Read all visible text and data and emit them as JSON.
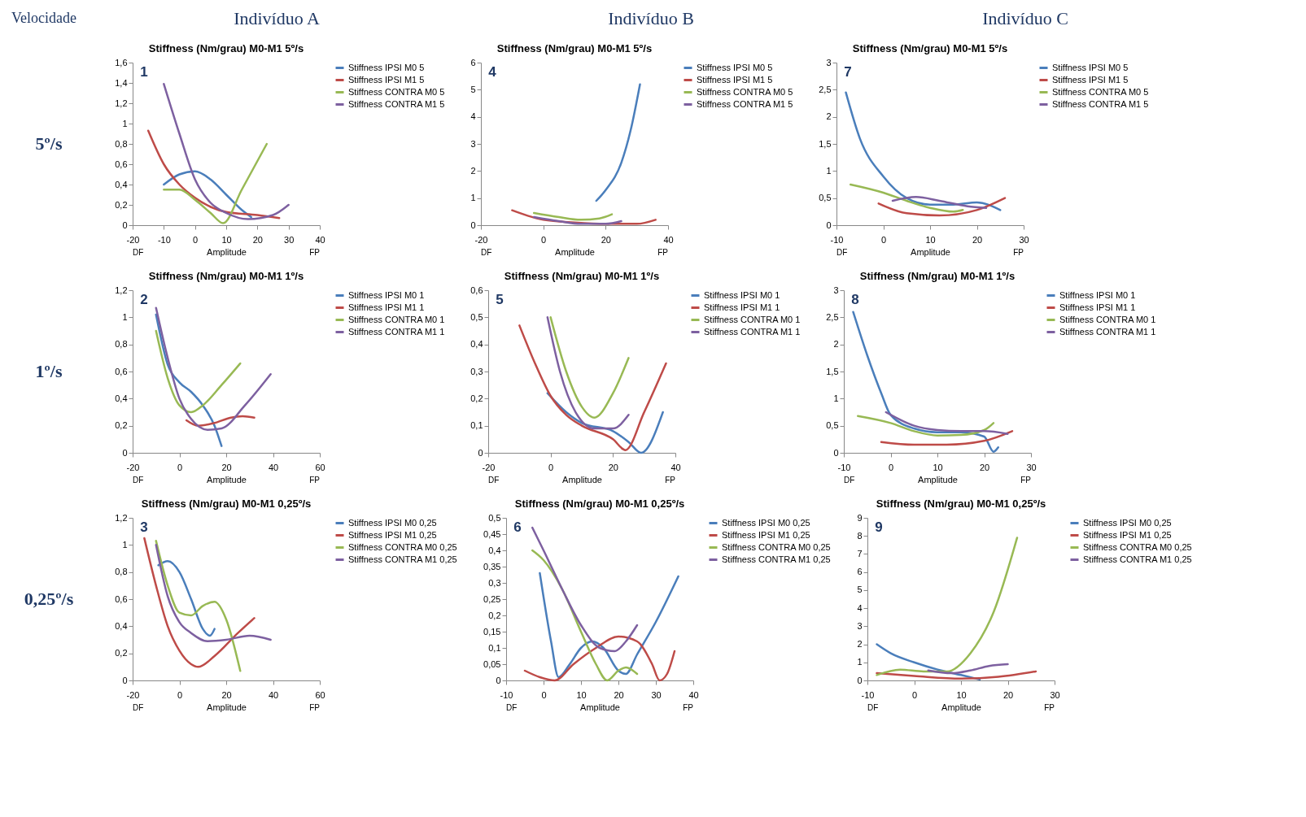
{
  "chart_data": [
    {
      "type": "line",
      "title": "Stiffness (Nm/grau) M0-M1 5º/s",
      "xlabel": "Amplitude",
      "legend": "right",
      "grid": false,
      "marker": "none",
      "line_style": "solid",
      "annotations": [
        "1",
        "DF",
        "FP",
        "Velocidade",
        "Indivíduo A",
        "5º/s"
      ],
      "xlim": [
        -20,
        40
      ],
      "xticks": [
        -20,
        -10,
        0,
        10,
        20,
        30,
        40
      ],
      "ylim": [
        0,
        1.6
      ],
      "yticks": [
        0,
        {
          "value": 0.2,
          "label": "0,2"
        },
        {
          "value": 0.4,
          "label": "0,4"
        },
        {
          "value": 0.6,
          "label": "0,6"
        },
        {
          "value": 0.8,
          "label": "0,8"
        },
        1,
        {
          "value": 1.2,
          "label": "1,2"
        },
        {
          "value": 1.4,
          "label": "1,4"
        },
        {
          "value": 1.6,
          "label": "1,6"
        }
      ],
      "series": [
        {
          "name": "Stiffness IPSI M0 5",
          "color": "#4a7ebb",
          "x": [
            -10,
            -5,
            0,
            5,
            10,
            15,
            18
          ],
          "values": [
            0.4,
            0.5,
            0.53,
            0.45,
            0.3,
            0.15,
            0.08
          ]
        },
        {
          "name": "Stiffness IPSI M1 5",
          "color": "#be4b48",
          "x": [
            -15,
            -10,
            -5,
            0,
            5,
            10,
            20,
            27
          ],
          "values": [
            0.93,
            0.6,
            0.4,
            0.27,
            0.18,
            0.13,
            0.1,
            0.07
          ]
        },
        {
          "name": "Stiffness CONTRA M0 5",
          "color": "#98b954",
          "x": [
            -10,
            -5,
            0,
            5,
            9,
            15,
            23
          ],
          "values": [
            0.35,
            0.35,
            0.25,
            0.12,
            0.02,
            0.35,
            0.8
          ]
        },
        {
          "name": "Stiffness CONTRA M1 5",
          "color": "#7d60a0",
          "x": [
            -10,
            -5,
            0,
            5,
            10,
            17,
            25,
            30
          ],
          "values": [
            1.39,
            0.9,
            0.45,
            0.22,
            0.12,
            0.06,
            0.1,
            0.2
          ]
        }
      ]
    },
    {
      "type": "line",
      "title": "Stiffness (Nm/grau) M0-M1 5º/s",
      "xlabel": "Amplitude",
      "legend": "right",
      "grid": false,
      "marker": "none",
      "line_style": "solid",
      "annotations": [
        "4",
        "DF",
        "FP",
        "Indivíduo B"
      ],
      "xlim": [
        -20,
        40
      ],
      "xticks": [
        -20,
        0,
        20,
        40
      ],
      "ylim": [
        0,
        6
      ],
      "yticks": [
        0,
        1,
        2,
        3,
        4,
        5,
        6
      ],
      "series": [
        {
          "name": "Stiffness IPSI M0 5",
          "color": "#4a7ebb",
          "x": [
            17,
            20,
            25,
            28,
            31
          ],
          "values": [
            0.9,
            1.3,
            2.3,
            3.5,
            5.2
          ]
        },
        {
          "name": "Stiffness IPSI M1 5",
          "color": "#be4b48",
          "x": [
            -10,
            -5,
            0,
            10,
            20,
            30,
            36
          ],
          "values": [
            0.55,
            0.35,
            0.2,
            0.1,
            0.05,
            0.05,
            0.2
          ]
        },
        {
          "name": "Stiffness CONTRA M0 5",
          "color": "#98b954",
          "x": [
            -3,
            5,
            12,
            18,
            22
          ],
          "values": [
            0.45,
            0.3,
            0.2,
            0.25,
            0.4
          ]
        },
        {
          "name": "Stiffness CONTRA M1 5",
          "color": "#7d60a0",
          "x": [
            -3,
            5,
            12,
            20,
            25
          ],
          "values": [
            0.3,
            0.15,
            0.05,
            0.05,
            0.15
          ]
        }
      ]
    },
    {
      "type": "line",
      "title": "Stiffness (Nm/grau) M0-M1 5º/s",
      "xlabel": "Amplitude",
      "legend": "right",
      "grid": false,
      "marker": "none",
      "line_style": "solid",
      "annotations": [
        "7",
        "DF",
        "FP",
        "Indivíduo C"
      ],
      "xlim": [
        -10,
        30
      ],
      "xticks": [
        -10,
        0,
        10,
        20,
        30
      ],
      "ylim": [
        0,
        3
      ],
      "yticks": [
        0,
        {
          "value": 0.5,
          "label": "0,5"
        },
        1,
        {
          "value": 1.5,
          "label": "1,5"
        },
        2,
        {
          "value": 2.5,
          "label": "2,5"
        },
        3
      ],
      "series": [
        {
          "name": "Stiffness IPSI M0 5",
          "color": "#4a7ebb",
          "x": [
            -8,
            -5,
            0,
            5,
            10,
            15,
            20,
            25
          ],
          "values": [
            2.45,
            1.6,
            0.9,
            0.5,
            0.38,
            0.38,
            0.42,
            0.28
          ]
        },
        {
          "name": "Stiffness IPSI M1 5",
          "color": "#be4b48",
          "x": [
            -1,
            5,
            12,
            20,
            26
          ],
          "values": [
            0.4,
            0.22,
            0.18,
            0.28,
            0.5
          ]
        },
        {
          "name": "Stiffness CONTRA M0 5",
          "color": "#98b954",
          "x": [
            -7,
            0,
            5,
            10,
            15,
            17
          ],
          "values": [
            0.75,
            0.6,
            0.45,
            0.32,
            0.25,
            0.28
          ]
        },
        {
          "name": "Stiffness CONTRA M1 5",
          "color": "#7d60a0",
          "x": [
            2,
            7,
            12,
            18,
            22
          ],
          "values": [
            0.45,
            0.52,
            0.45,
            0.35,
            0.32
          ]
        }
      ]
    },
    {
      "type": "line",
      "title": "Stiffness (Nm/grau) M0-M1 1º/s",
      "xlabel": "Amplitude",
      "legend": "right",
      "grid": false,
      "marker": "none",
      "line_style": "solid",
      "annotations": [
        "2",
        "DF",
        "FP",
        "1º/s"
      ],
      "xlim": [
        -20,
        60
      ],
      "xticks": [
        -20,
        0,
        20,
        40,
        60
      ],
      "ylim": [
        0,
        1.2
      ],
      "yticks": [
        0,
        {
          "value": 0.2,
          "label": "0,2"
        },
        {
          "value": 0.4,
          "label": "0,4"
        },
        {
          "value": 0.6,
          "label": "0,6"
        },
        {
          "value": 0.8,
          "label": "0,8"
        },
        1,
        {
          "value": 1.2,
          "label": "1,2"
        }
      ],
      "series": [
        {
          "name": "Stiffness IPSI M0 1",
          "color": "#4a7ebb",
          "x": [
            -10,
            -5,
            0,
            5,
            10,
            15,
            18
          ],
          "values": [
            1.02,
            0.65,
            0.52,
            0.45,
            0.35,
            0.2,
            0.05
          ]
        },
        {
          "name": "Stiffness IPSI M1 1",
          "color": "#be4b48",
          "x": [
            3,
            8,
            15,
            22,
            27,
            32
          ],
          "values": [
            0.24,
            0.2,
            0.22,
            0.26,
            0.27,
            0.26
          ]
        },
        {
          "name": "Stiffness CONTRA M0 1",
          "color": "#98b954",
          "x": [
            -10,
            -5,
            0,
            5,
            10,
            18,
            26
          ],
          "values": [
            0.9,
            0.55,
            0.35,
            0.3,
            0.35,
            0.5,
            0.66
          ]
        },
        {
          "name": "Stiffness CONTRA M1 1",
          "color": "#7d60a0",
          "x": [
            -10,
            -5,
            0,
            5,
            12,
            18,
            28,
            39
          ],
          "values": [
            1.07,
            0.7,
            0.4,
            0.25,
            0.17,
            0.18,
            0.35,
            0.58
          ]
        }
      ]
    },
    {
      "type": "line",
      "title": "Stiffness (Nm/grau) M0-M1 1º/s",
      "xlabel": "Amplitude",
      "legend": "right",
      "grid": false,
      "marker": "none",
      "line_style": "solid",
      "annotations": [
        "5",
        "DF",
        "FP"
      ],
      "xlim": [
        -20,
        40
      ],
      "xticks": [
        -20,
        0,
        20,
        40
      ],
      "ylim": [
        0,
        0.6
      ],
      "yticks": [
        0,
        {
          "value": 0.1,
          "label": "0,1"
        },
        {
          "value": 0.2,
          "label": "0,2"
        },
        {
          "value": 0.3,
          "label": "0,3"
        },
        {
          "value": 0.4,
          "label": "0,4"
        },
        {
          "value": 0.5,
          "label": "0,5"
        },
        {
          "value": 0.6,
          "label": "0,6"
        }
      ],
      "series": [
        {
          "name": "Stiffness IPSI M0 1",
          "color": "#4a7ebb",
          "x": [
            -1,
            5,
            10,
            20,
            25,
            29,
            36
          ],
          "values": [
            0.22,
            0.15,
            0.11,
            0.08,
            0.04,
            0.0,
            0.15
          ]
        },
        {
          "name": "Stiffness IPSI M1 1",
          "color": "#be4b48",
          "x": [
            -10,
            -5,
            0,
            5,
            10,
            20,
            24,
            30,
            37
          ],
          "values": [
            0.47,
            0.33,
            0.21,
            0.14,
            0.1,
            0.05,
            0.01,
            0.15,
            0.33
          ]
        },
        {
          "name": "Stiffness CONTRA M0 1",
          "color": "#98b954",
          "x": [
            0,
            5,
            10,
            14,
            20,
            25
          ],
          "values": [
            0.5,
            0.3,
            0.17,
            0.13,
            0.22,
            0.35
          ]
        },
        {
          "name": "Stiffness CONTRA M1 1",
          "color": "#7d60a0",
          "x": [
            -1,
            3,
            8,
            14,
            20,
            25
          ],
          "values": [
            0.5,
            0.3,
            0.15,
            0.09,
            0.09,
            0.14
          ]
        }
      ]
    },
    {
      "type": "line",
      "title": "Stiffness (Nm/grau) M0-M1 1º/s",
      "xlabel": "Amplitude",
      "legend": "right",
      "grid": false,
      "marker": "none",
      "line_style": "solid",
      "annotations": [
        "8",
        "DF",
        "FP"
      ],
      "xlim": [
        -10,
        30
      ],
      "xticks": [
        -10,
        0,
        10,
        20,
        30
      ],
      "ylim": [
        0,
        3
      ],
      "yticks": [
        0,
        {
          "value": 0.5,
          "label": "0,5"
        },
        1,
        {
          "value": 1.5,
          "label": "1,5"
        },
        2,
        {
          "value": 2.5,
          "label": "2,5"
        },
        3
      ],
      "series": [
        {
          "name": "Stiffness IPSI M0 1",
          "color": "#4a7ebb",
          "x": [
            -8,
            -5,
            -2,
            0,
            5,
            10,
            15,
            20,
            22,
            23
          ],
          "values": [
            2.6,
            1.8,
            1.1,
            0.7,
            0.45,
            0.38,
            0.38,
            0.3,
            0.02,
            0.1
          ]
        },
        {
          "name": "Stiffness IPSI M1 1",
          "color": "#be4b48",
          "x": [
            -2,
            5,
            12,
            20,
            26
          ],
          "values": [
            0.2,
            0.15,
            0.15,
            0.22,
            0.4
          ]
        },
        {
          "name": "Stiffness CONTRA M0 1",
          "color": "#98b954",
          "x": [
            -7,
            0,
            5,
            10,
            15,
            20,
            22
          ],
          "values": [
            0.68,
            0.55,
            0.4,
            0.32,
            0.33,
            0.42,
            0.55
          ]
        },
        {
          "name": "Stiffness CONTRA M1 1",
          "color": "#7d60a0",
          "x": [
            -1,
            5,
            10,
            15,
            20,
            25
          ],
          "values": [
            0.75,
            0.5,
            0.42,
            0.4,
            0.4,
            0.35
          ]
        }
      ]
    },
    {
      "type": "line",
      "title": "Stiffness (Nm/grau) M0-M1 0,25º/s",
      "xlabel": "Amplitude",
      "legend": "right",
      "grid": false,
      "marker": "none",
      "line_style": "solid",
      "annotations": [
        "3",
        "DF",
        "FP",
        "0,25º/s"
      ],
      "xlim": [
        -20,
        60
      ],
      "xticks": [
        -20,
        0,
        20,
        40,
        60
      ],
      "ylim": [
        0,
        1.2
      ],
      "yticks": [
        0,
        {
          "value": 0.2,
          "label": "0,2"
        },
        {
          "value": 0.4,
          "label": "0,4"
        },
        {
          "value": 0.6,
          "label": "0,6"
        },
        {
          "value": 0.8,
          "label": "0,8"
        },
        1,
        {
          "value": 1.2,
          "label": "1,2"
        }
      ],
      "series": [
        {
          "name": "Stiffness IPSI M0 0,25",
          "color": "#4a7ebb",
          "x": [
            -9,
            -5,
            0,
            5,
            10,
            13,
            15
          ],
          "values": [
            0.85,
            0.88,
            0.8,
            0.6,
            0.38,
            0.33,
            0.38
          ]
        },
        {
          "name": "Stiffness IPSI M1 0,25",
          "color": "#be4b48",
          "x": [
            -15,
            -10,
            -5,
            0,
            5,
            8,
            15,
            25,
            32
          ],
          "values": [
            1.05,
            0.7,
            0.4,
            0.22,
            0.12,
            0.1,
            0.18,
            0.35,
            0.46
          ]
        },
        {
          "name": "Stiffness CONTRA M0 0,25",
          "color": "#98b954",
          "x": [
            -10,
            -5,
            0,
            5,
            10,
            15,
            20,
            26
          ],
          "values": [
            1.03,
            0.7,
            0.5,
            0.48,
            0.55,
            0.58,
            0.45,
            0.07
          ]
        },
        {
          "name": "Stiffness CONTRA M1 0,25",
          "color": "#7d60a0",
          "x": [
            -10,
            -5,
            0,
            5,
            12,
            20,
            30,
            39
          ],
          "values": [
            1.0,
            0.62,
            0.43,
            0.35,
            0.29,
            0.3,
            0.33,
            0.3
          ]
        }
      ]
    },
    {
      "type": "line",
      "title": "Stiffness (Nm/grau) M0-M1 0,25º/s",
      "xlabel": "Amplitude",
      "legend": "right",
      "grid": false,
      "marker": "none",
      "line_style": "solid",
      "annotations": [
        "6",
        "DF",
        "FP"
      ],
      "xlim": [
        -10,
        40
      ],
      "xticks": [
        -10,
        0,
        10,
        20,
        30,
        40
      ],
      "ylim": [
        0,
        0.5
      ],
      "yticks": [
        0,
        {
          "value": 0.05,
          "label": "0,05"
        },
        {
          "value": 0.1,
          "label": "0,1"
        },
        {
          "value": 0.15,
          "label": "0,15"
        },
        {
          "value": 0.2,
          "label": "0,2"
        },
        {
          "value": 0.25,
          "label": "0,25"
        },
        {
          "value": 0.3,
          "label": "0,3"
        },
        {
          "value": 0.35,
          "label": "0,35"
        },
        {
          "value": 0.4,
          "label": "0,4"
        },
        {
          "value": 0.45,
          "label": "0,45"
        },
        {
          "value": 0.5,
          "label": "0,5"
        }
      ],
      "series": [
        {
          "name": "Stiffness IPSI M0 0,25",
          "color": "#4a7ebb",
          "x": [
            -1,
            2,
            4,
            7,
            10,
            13,
            16,
            20,
            22,
            25,
            30,
            36
          ],
          "values": [
            0.33,
            0.12,
            0.01,
            0.05,
            0.1,
            0.12,
            0.1,
            0.03,
            0.02,
            0.08,
            0.18,
            0.32
          ]
        },
        {
          "name": "Stiffness IPSI M1 0,25",
          "color": "#be4b48",
          "x": [
            -5,
            -1,
            3,
            8,
            14,
            20,
            25,
            29,
            31,
            33,
            35
          ],
          "values": [
            0.03,
            0.01,
            0.0,
            0.05,
            0.1,
            0.135,
            0.12,
            0.05,
            0.0,
            0.02,
            0.09
          ]
        },
        {
          "name": "Stiffness CONTRA M0 0,25",
          "color": "#98b954",
          "x": [
            -3,
            0,
            5,
            10,
            14,
            17,
            20,
            22,
            25
          ],
          "values": [
            0.4,
            0.37,
            0.28,
            0.15,
            0.05,
            0.0,
            0.03,
            0.04,
            0.02
          ]
        },
        {
          "name": "Stiffness CONTRA M1 0,25",
          "color": "#7d60a0",
          "x": [
            -3,
            0,
            5,
            10,
            15,
            19,
            22,
            25
          ],
          "values": [
            0.47,
            0.4,
            0.28,
            0.17,
            0.1,
            0.09,
            0.12,
            0.17
          ]
        }
      ]
    },
    {
      "type": "line",
      "title": "Stiffness (Nm/grau) M0-M1 0,25º/s",
      "xlabel": "Amplitude",
      "legend": "right",
      "grid": false,
      "marker": "none",
      "line_style": "solid",
      "annotations": [
        "9",
        "DF",
        "FP"
      ],
      "xlim": [
        -10,
        30
      ],
      "xticks": [
        -10,
        0,
        10,
        20,
        30
      ],
      "ylim": [
        0,
        9
      ],
      "yticks": [
        0,
        1,
        2,
        3,
        4,
        5,
        6,
        7,
        8,
        9
      ],
      "series": [
        {
          "name": "Stiffness IPSI M0 0,25",
          "color": "#4a7ebb",
          "x": [
            -8,
            -5,
            0,
            5,
            10,
            14
          ],
          "values": [
            2.0,
            1.5,
            1.0,
            0.6,
            0.3,
            0.05
          ]
        },
        {
          "name": "Stiffness IPSI M1 0,25",
          "color": "#be4b48",
          "x": [
            -8,
            0,
            10,
            18,
            26
          ],
          "values": [
            0.4,
            0.25,
            0.1,
            0.2,
            0.5
          ]
        },
        {
          "name": "Stiffness CONTRA M0 0,25",
          "color": "#98b954",
          "x": [
            -8,
            -3,
            2,
            7,
            12,
            17,
            22
          ],
          "values": [
            0.3,
            0.6,
            0.5,
            0.5,
            1.5,
            3.8,
            7.9
          ]
        },
        {
          "name": "Stiffness CONTRA M1 0,25",
          "color": "#7d60a0",
          "x": [
            3,
            8,
            12,
            16,
            20
          ],
          "values": [
            0.55,
            0.4,
            0.55,
            0.8,
            0.9
          ]
        }
      ]
    }
  ]
}
